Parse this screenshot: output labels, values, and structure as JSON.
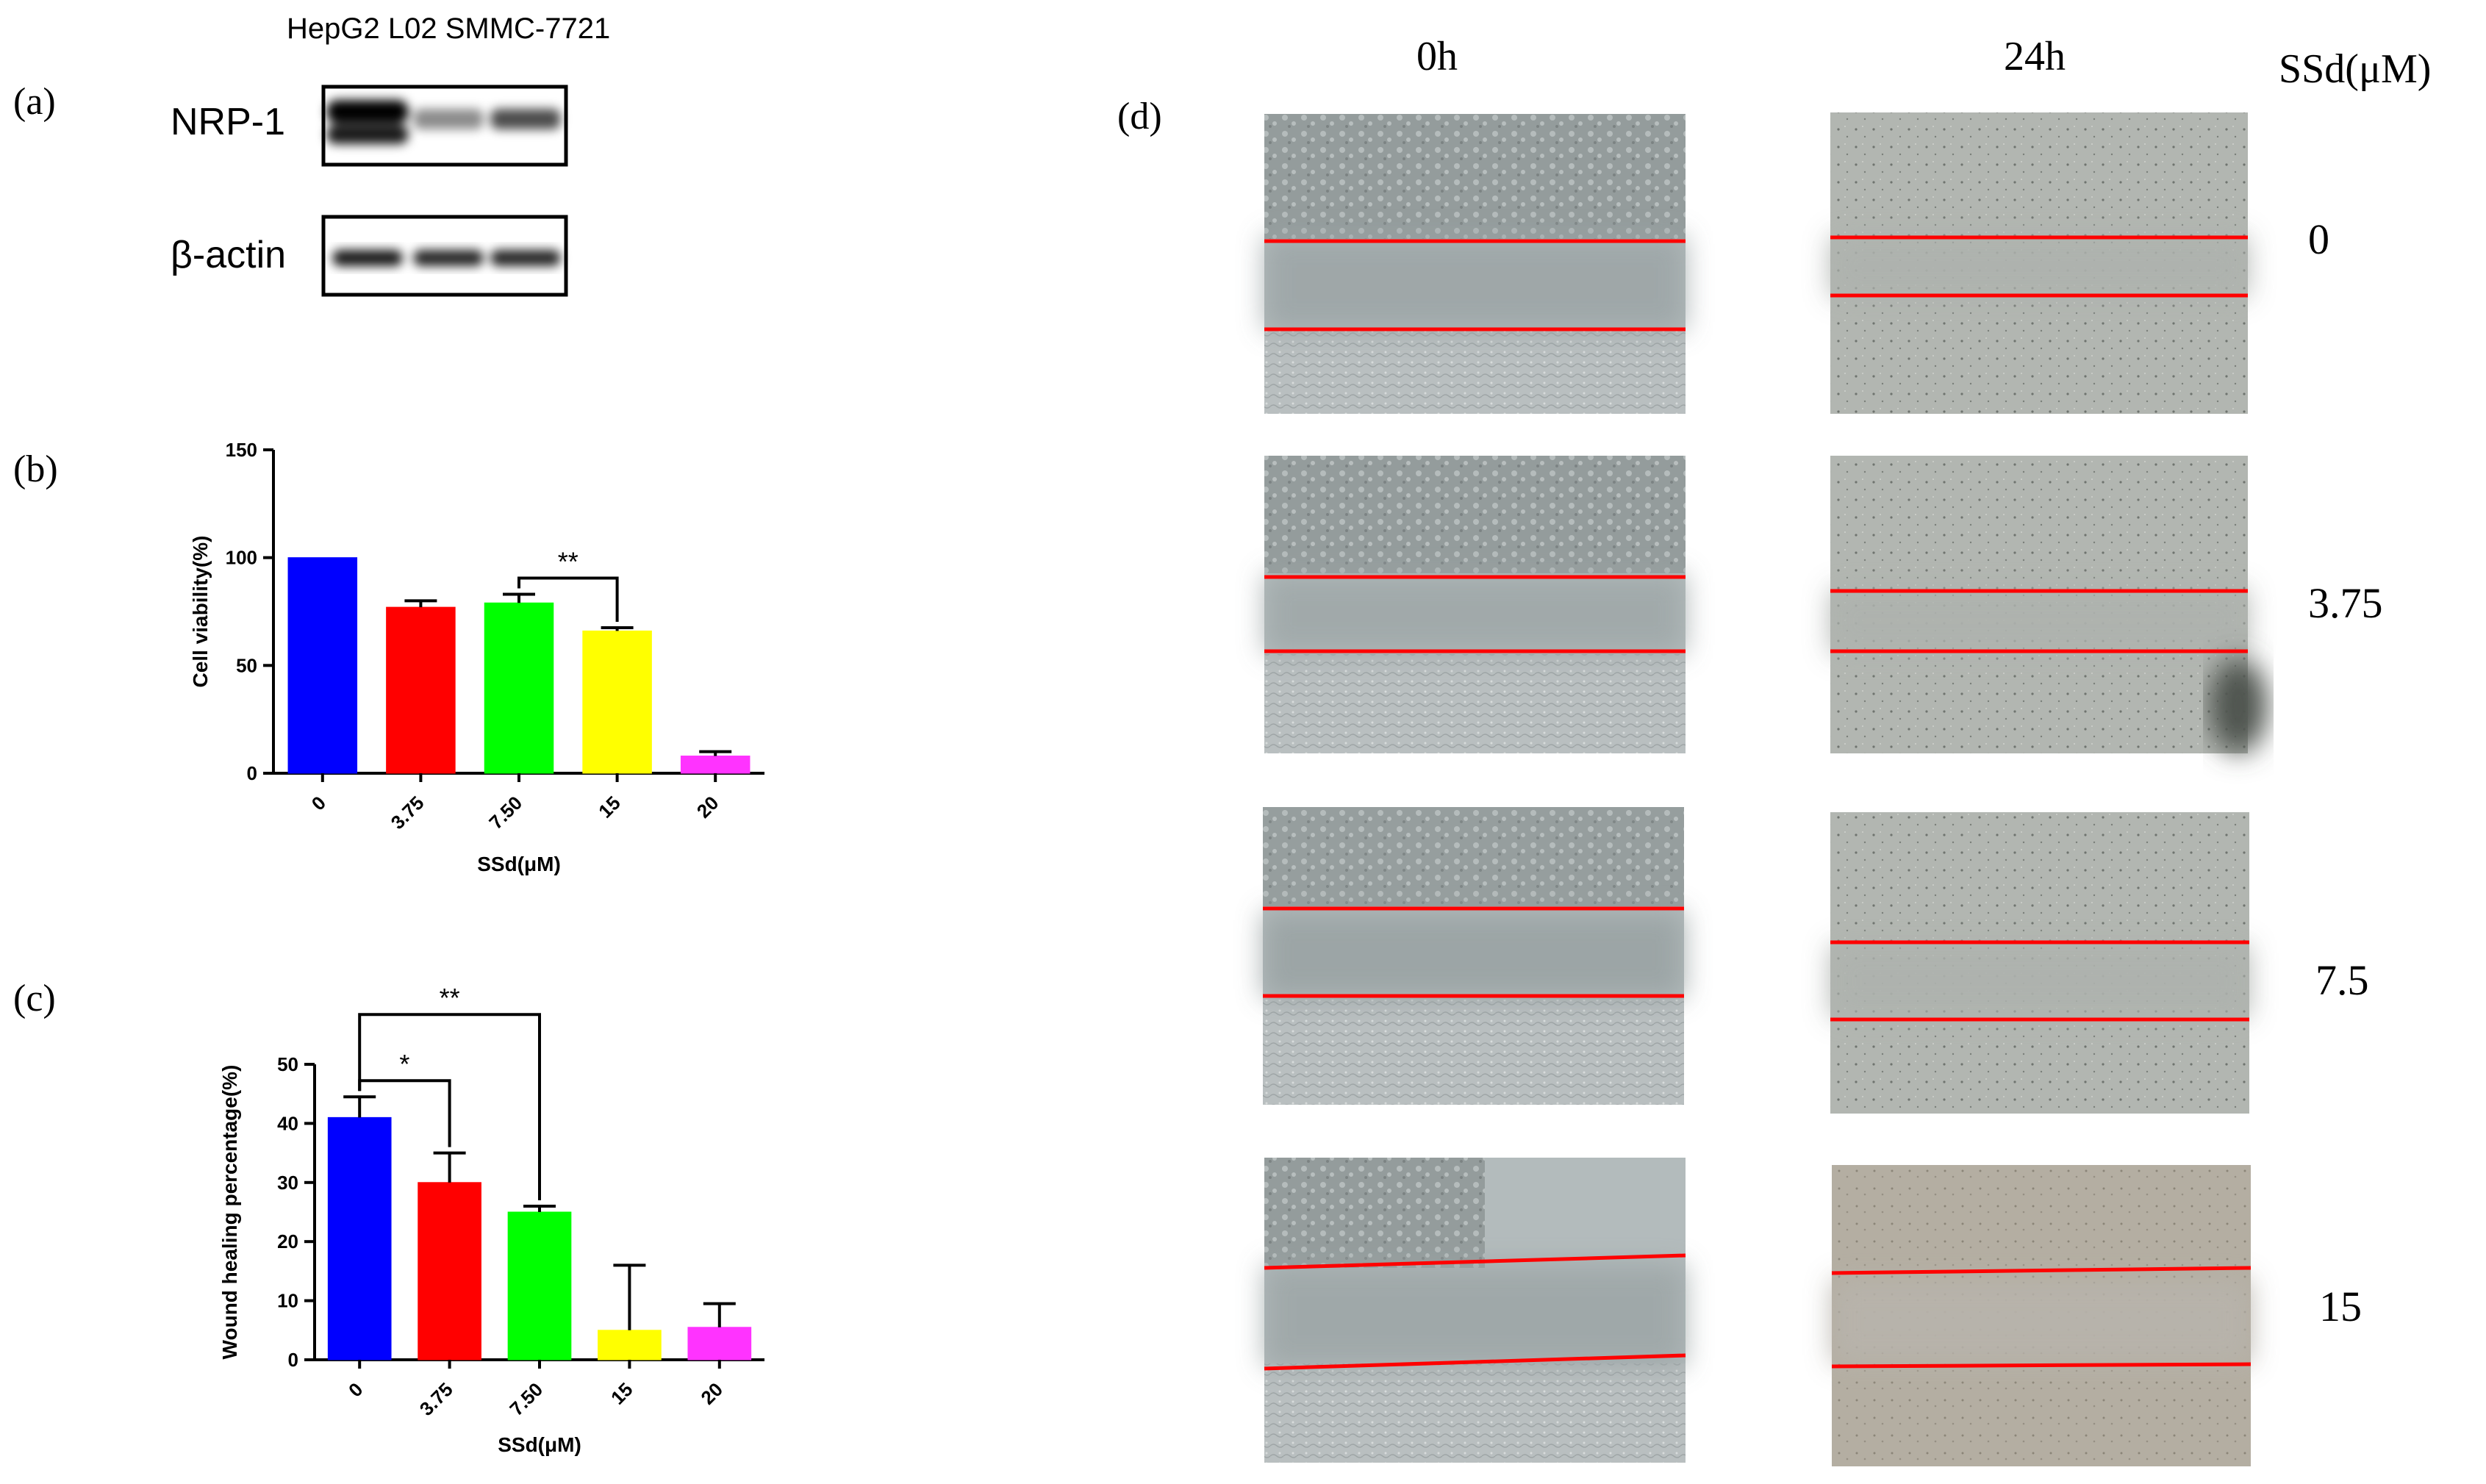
{
  "figure": {
    "panel_a": {
      "label": "(a)",
      "header": "HepG2 L02 SMMC-7721",
      "blots": [
        {
          "name": "NRP-1",
          "band_intensity": [
            1.0,
            0.45,
            0.7
          ]
        },
        {
          "name": "β-actin",
          "band_intensity": [
            0.9,
            0.85,
            0.85
          ]
        }
      ]
    },
    "panel_d": {
      "label": "(d)",
      "col_headers": [
        "0h",
        "24h"
      ],
      "row_header_title": "SSd(μM)",
      "rows": [
        "0",
        "3.75",
        "7.5",
        "15"
      ]
    }
  },
  "chart_data": [
    {
      "panel": "(b)",
      "type": "bar",
      "categories": [
        "0",
        "3.75",
        "7.50",
        "15",
        "20"
      ],
      "values": [
        100,
        77,
        79,
        66,
        8
      ],
      "errors": [
        0,
        3,
        4,
        1.5,
        2
      ],
      "colors": [
        "#0000ff",
        "#ff0000",
        "#00ff00",
        "#ffff00",
        "#ff33ff"
      ],
      "ylabel": "Cell viability(%)",
      "xlabel": "SSd(μM)",
      "ylim": [
        0,
        150
      ],
      "yticks": [
        0,
        50,
        100,
        150
      ],
      "significance": [
        {
          "from": 2,
          "to": 3,
          "label": "**"
        }
      ]
    },
    {
      "panel": "(c)",
      "type": "bar",
      "categories": [
        "0",
        "3.75",
        "7.50",
        "15",
        "20"
      ],
      "values": [
        41,
        30,
        25,
        5,
        5.5
      ],
      "errors": [
        3.5,
        5,
        1,
        11,
        4
      ],
      "colors": [
        "#0000ff",
        "#ff0000",
        "#00ff00",
        "#ffff00",
        "#ff33ff"
      ],
      "ylabel": "Wound healing percentage(%)",
      "xlabel": "SSd(μM)",
      "ylim": [
        0,
        50
      ],
      "yticks": [
        0,
        10,
        20,
        30,
        40,
        50
      ],
      "significance": [
        {
          "from": 0,
          "to": 1,
          "label": "*"
        },
        {
          "from": 0,
          "to": 2,
          "label": "**"
        }
      ]
    }
  ]
}
